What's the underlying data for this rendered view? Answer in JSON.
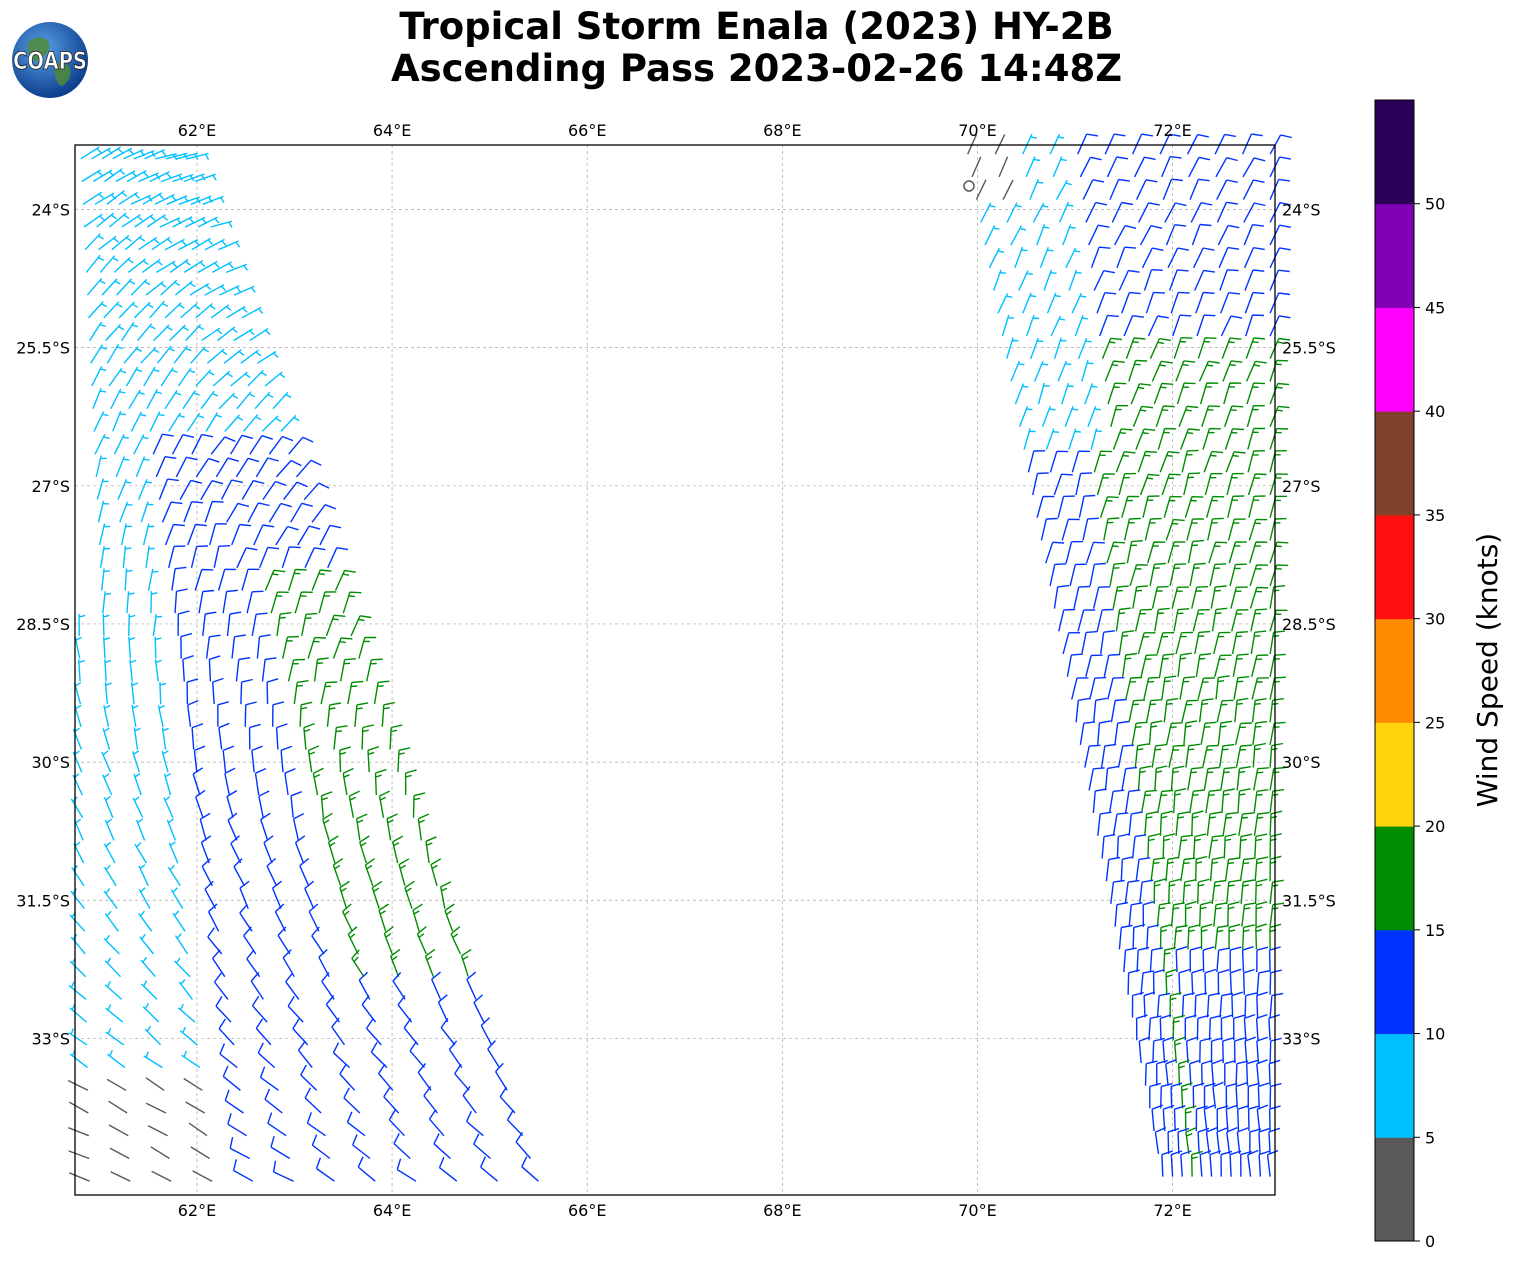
{
  "title": {
    "line1": "Tropical Storm Enala (2023) HY-2B",
    "line2": "Ascending Pass 2023-02-26 14:48Z"
  },
  "logo": {
    "text": "COAPS",
    "icon": "globe-icon"
  },
  "map": {
    "lon_ticks": [
      "62°E",
      "64°E",
      "66°E",
      "68°E",
      "70°E",
      "72°E"
    ],
    "lat_ticks": [
      "24°S",
      "25.5°S",
      "27°S",
      "28.5°S",
      "30°S",
      "31.5°S",
      "33°S"
    ]
  },
  "colorbar": {
    "label": "Wind Speed (knots)",
    "ticks": [
      "0",
      "5",
      "10",
      "15",
      "20",
      "25",
      "30",
      "35",
      "40",
      "45",
      "50"
    ],
    "colors": [
      "#595959",
      "#00bfff",
      "#0033ff",
      "#008c00",
      "#ffd40f",
      "#ff8c00",
      "#ff0f0f",
      "#80402b",
      "#ff00ff",
      "#8000b3",
      "#2b0059"
    ]
  },
  "chart_data": {
    "type": "wind-barb-map",
    "lon_range": [
      60.75,
      73.05
    ],
    "lat_range": [
      -34.7,
      -23.3
    ],
    "wind_speed_units": "knots",
    "swaths": [
      {
        "name": "",
        "lon_range_at_top": [
          60.8,
          62.0
        ],
        "lon_range_at_bottom": [
          61.0,
          65.6
        ]
      },
      {
        "name": "",
        "lon_range_at_top": [
          69.9,
          73.0
        ],
        "lon_range_at_bottom": [
          71.9,
          73.0
        ]
      }
    ]
  }
}
